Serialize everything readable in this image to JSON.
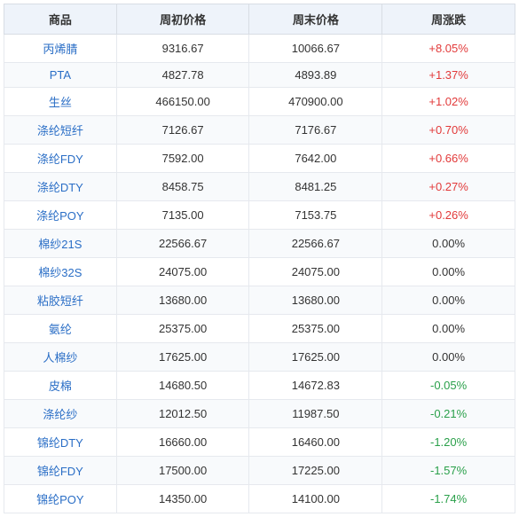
{
  "table": {
    "columns": [
      "商品",
      "周初价格",
      "周末价格",
      "周涨跌"
    ],
    "col_widths": [
      "22%",
      "26%",
      "26%",
      "26%"
    ],
    "header_bg": "#eef3fa",
    "header_color": "#333333",
    "border_color": "#e6e9ee",
    "row_alt_bg": "#f8fafc",
    "product_link_color": "#2a6ec6",
    "pos_color": "#e23a3a",
    "neg_color": "#2aa04a",
    "zero_color": "#333333",
    "header_fontsize": 13,
    "cell_fontsize": 13,
    "rows": [
      {
        "product": "丙烯腈",
        "start": "9316.67",
        "end": "10066.67",
        "change": "+8.05%",
        "dir": "pos"
      },
      {
        "product": "PTA",
        "start": "4827.78",
        "end": "4893.89",
        "change": "+1.37%",
        "dir": "pos"
      },
      {
        "product": "生丝",
        "start": "466150.00",
        "end": "470900.00",
        "change": "+1.02%",
        "dir": "pos"
      },
      {
        "product": "涤纶短纤",
        "start": "7126.67",
        "end": "7176.67",
        "change": "+0.70%",
        "dir": "pos"
      },
      {
        "product": "涤纶FDY",
        "start": "7592.00",
        "end": "7642.00",
        "change": "+0.66%",
        "dir": "pos"
      },
      {
        "product": "涤纶DTY",
        "start": "8458.75",
        "end": "8481.25",
        "change": "+0.27%",
        "dir": "pos"
      },
      {
        "product": "涤纶POY",
        "start": "7135.00",
        "end": "7153.75",
        "change": "+0.26%",
        "dir": "pos"
      },
      {
        "product": "棉纱21S",
        "start": "22566.67",
        "end": "22566.67",
        "change": "0.00%",
        "dir": "zero"
      },
      {
        "product": "棉纱32S",
        "start": "24075.00",
        "end": "24075.00",
        "change": "0.00%",
        "dir": "zero"
      },
      {
        "product": "粘胶短纤",
        "start": "13680.00",
        "end": "13680.00",
        "change": "0.00%",
        "dir": "zero"
      },
      {
        "product": "氨纶",
        "start": "25375.00",
        "end": "25375.00",
        "change": "0.00%",
        "dir": "zero"
      },
      {
        "product": "人棉纱",
        "start": "17625.00",
        "end": "17625.00",
        "change": "0.00%",
        "dir": "zero"
      },
      {
        "product": "皮棉",
        "start": "14680.50",
        "end": "14672.83",
        "change": "-0.05%",
        "dir": "neg"
      },
      {
        "product": "涤纶纱",
        "start": "12012.50",
        "end": "11987.50",
        "change": "-0.21%",
        "dir": "neg"
      },
      {
        "product": "锦纶DTY",
        "start": "16660.00",
        "end": "16460.00",
        "change": "-1.20%",
        "dir": "neg"
      },
      {
        "product": "锦纶FDY",
        "start": "17500.00",
        "end": "17225.00",
        "change": "-1.57%",
        "dir": "neg"
      },
      {
        "product": "锦纶POY",
        "start": "14350.00",
        "end": "14100.00",
        "change": "-1.74%",
        "dir": "neg"
      }
    ]
  }
}
